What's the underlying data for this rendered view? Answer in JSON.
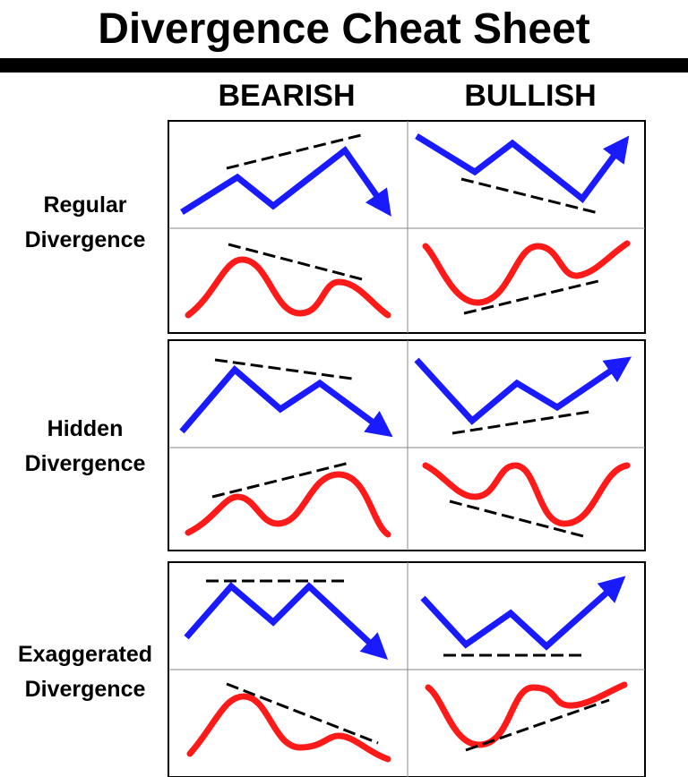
{
  "header": {
    "title": "Divergence Cheat Sheet"
  },
  "columns": [
    "BEARISH",
    "BULLISH"
  ],
  "rows": [
    {
      "label_lines": [
        "Regular",
        "Divergence"
      ]
    },
    {
      "label_lines": [
        "Hidden",
        "Divergence"
      ]
    },
    {
      "label_lines": [
        "Exaggerated",
        "Divergence"
      ]
    }
  ]
}
